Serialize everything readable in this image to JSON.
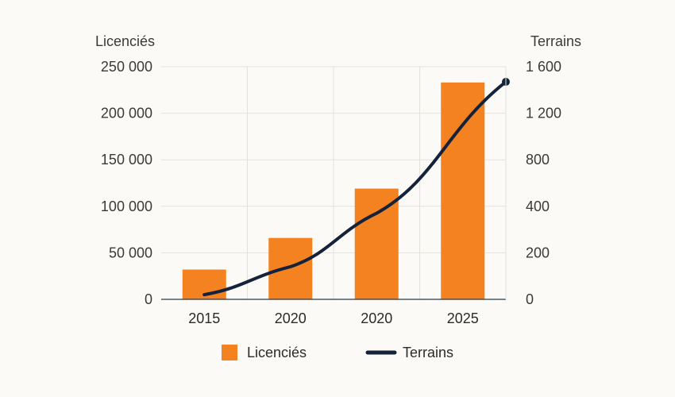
{
  "chart_data": {
    "type": "bar+line",
    "categories": [
      "2015",
      "2020",
      "2020",
      "2025"
    ],
    "series": [
      {
        "name": "Licenciés",
        "type": "bar",
        "axis": "left",
        "color": "#f58220",
        "values": [
          32000,
          66000,
          119000,
          233000
        ]
      },
      {
        "name": "Terrains",
        "type": "line",
        "axis": "right",
        "color": "#14233a",
        "values": [
          20,
          140,
          370,
          1470
        ]
      }
    ],
    "left_axis": {
      "title": "Licenciés",
      "ylim": [
        0,
        250000
      ],
      "ticks": [
        0,
        50000,
        100000,
        150000,
        200000,
        250000
      ],
      "tick_labels": [
        "0",
        "50 000",
        "100 000",
        "150 000",
        "200 000",
        "250 000"
      ]
    },
    "right_axis": {
      "title": "Terrains",
      "tick_labels": [
        "0",
        "200",
        "400",
        "800",
        "1 200",
        "1 600"
      ]
    },
    "legend": {
      "position": "bottom-center",
      "items": [
        {
          "label": "Licenciés",
          "symbol": "square",
          "color": "#f58220"
        },
        {
          "label": "Terrains",
          "symbol": "line",
          "color": "#14233a"
        }
      ]
    },
    "grid": true
  }
}
